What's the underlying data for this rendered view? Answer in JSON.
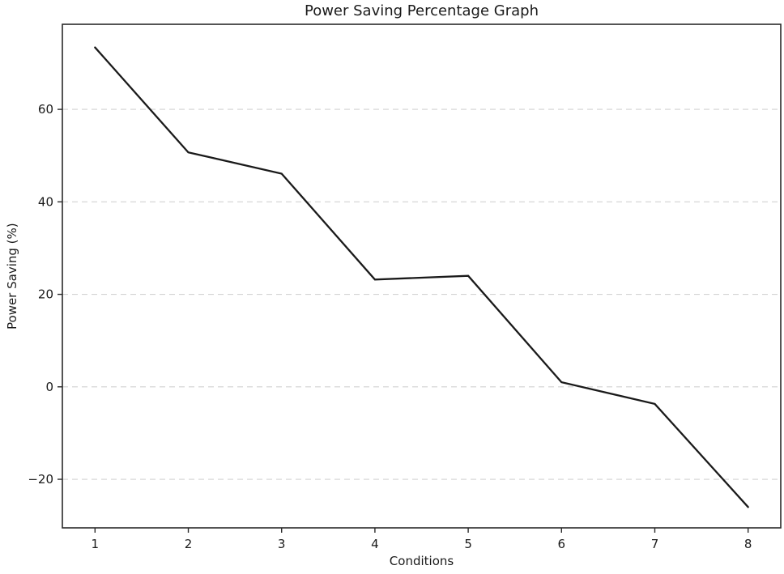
{
  "chart_data": {
    "type": "line",
    "title": "Power Saving Percentage Graph",
    "xlabel": "Conditions",
    "ylabel": "Power Saving (%)",
    "x": [
      1,
      2,
      3,
      4,
      5,
      6,
      7,
      8
    ],
    "series": [
      {
        "name": "Power Saving",
        "values": [
          73.4,
          50.7,
          46.1,
          23.2,
          24.0,
          1.0,
          -3.7,
          -26.0
        ]
      }
    ],
    "xticks": [
      1,
      2,
      3,
      4,
      5,
      6,
      7,
      8
    ],
    "yticks": [
      -20,
      0,
      20,
      40,
      60
    ],
    "xlim": [
      0.65,
      8.35
    ],
    "ylim": [
      -30.5,
      78.4
    ],
    "grid": "horizontal-dashed",
    "legend": "none",
    "colors": {
      "line": "#1a1a1a",
      "grid": "#d2d2d2",
      "axis": "#2a2a2a",
      "tick_label": "#1a1a1a",
      "background": "#ffffff"
    }
  }
}
